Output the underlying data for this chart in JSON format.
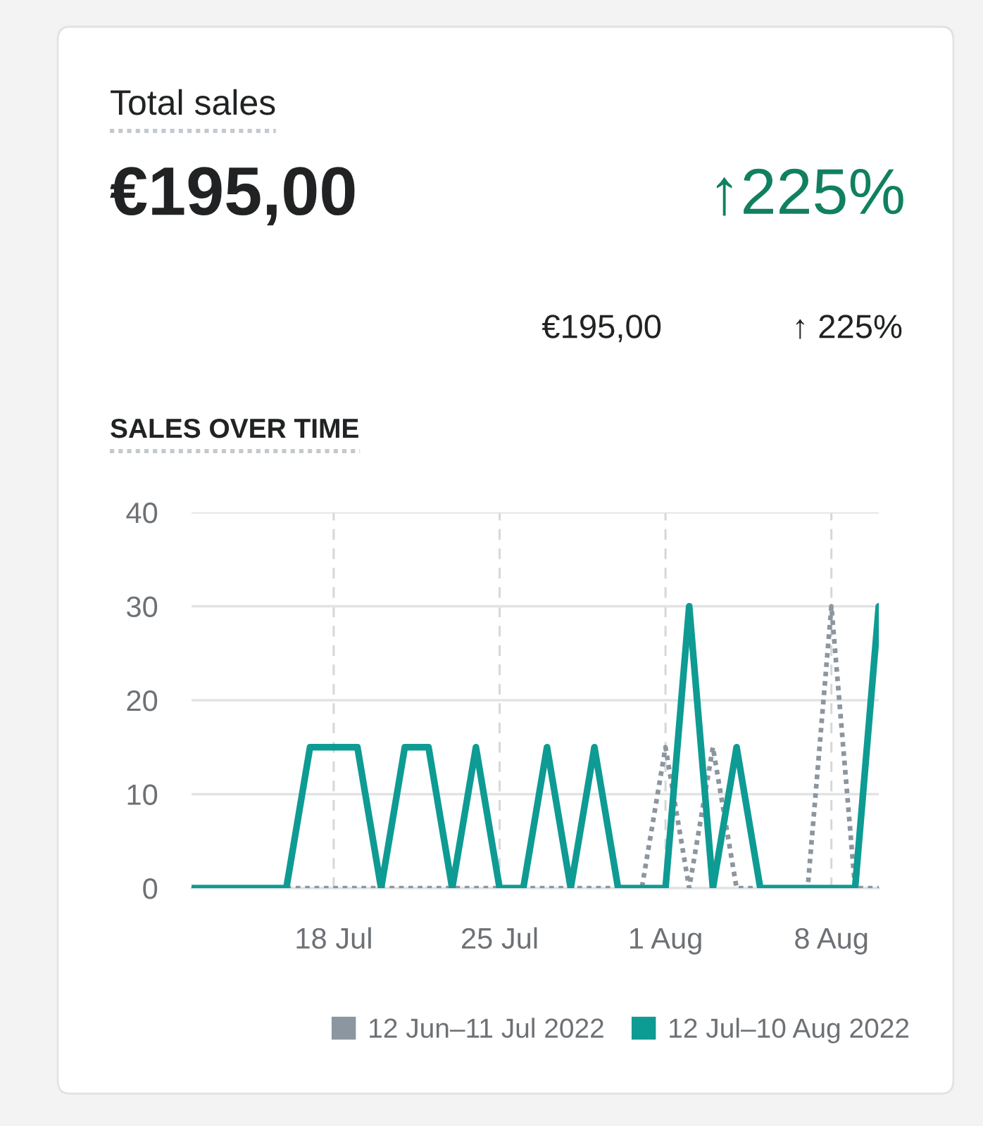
{
  "chart_data": {
    "type": "line",
    "title": "Total sales",
    "subtitle": "SALES OVER TIME",
    "annotations": [
      "€195,00",
      "↑225%",
      "€195,00",
      "↑ 225%"
    ],
    "x": [
      "2022-07-12",
      "2022-07-13",
      "2022-07-14",
      "2022-07-15",
      "2022-07-16",
      "2022-07-17",
      "2022-07-18",
      "2022-07-19",
      "2022-07-20",
      "2022-07-21",
      "2022-07-22",
      "2022-07-23",
      "2022-07-24",
      "2022-07-25",
      "2022-07-26",
      "2022-07-27",
      "2022-07-28",
      "2022-07-29",
      "2022-07-30",
      "2022-07-31",
      "2022-08-01",
      "2022-08-02",
      "2022-08-03",
      "2022-08-04",
      "2022-08-05",
      "2022-08-06",
      "2022-08-07",
      "2022-08-08",
      "2022-08-09",
      "2022-08-10"
    ],
    "series": [
      {
        "name": "12 Jun–11 Jul 2022",
        "color": "#8c96a0",
        "line_style": "dotted",
        "values": [
          null,
          null,
          null,
          null,
          0,
          0,
          0,
          0,
          0,
          0,
          0,
          0,
          0,
          0,
          0,
          0,
          0,
          0,
          0,
          0,
          15,
          0,
          15,
          0,
          0,
          0,
          0,
          30,
          0,
          0
        ]
      },
      {
        "name": "12 Jul–10 Aug 2022",
        "color": "#0e9b93",
        "line_style": "solid",
        "values": [
          0,
          0,
          0,
          0,
          0,
          15,
          15,
          15,
          0,
          15,
          15,
          0,
          15,
          0,
          0,
          15,
          0,
          15,
          0,
          0,
          0,
          30,
          0,
          15,
          0,
          0,
          0,
          0,
          0,
          30
        ]
      }
    ],
    "xlim": [
      "2022-07-12",
      "2022-08-10"
    ],
    "xticks": [
      {
        "value": "2022-07-18",
        "label": "18 Jul"
      },
      {
        "value": "2022-07-25",
        "label": "25 Jul"
      },
      {
        "value": "2022-08-01",
        "label": "1 Aug"
      },
      {
        "value": "2022-08-08",
        "label": "8 Aug"
      }
    ],
    "ylim": [
      0,
      40
    ],
    "yticks": [
      0,
      10,
      20,
      30,
      40
    ],
    "grid": true,
    "legend": "bottom"
  }
}
